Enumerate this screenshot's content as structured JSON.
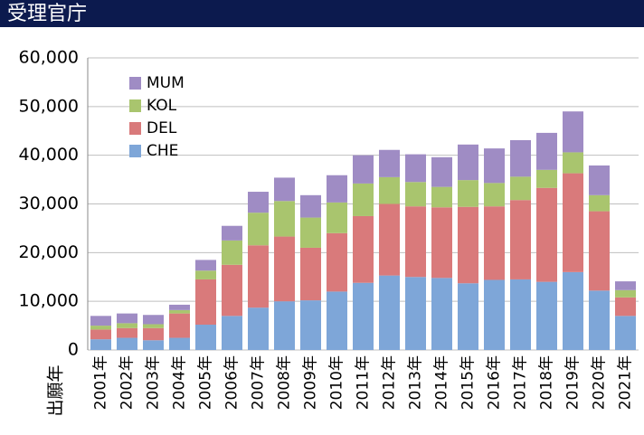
{
  "chart_data": {
    "type": "stacked_bar",
    "title": "受理官庁",
    "x_label": "出願年",
    "categories": [
      "2001年",
      "2002年",
      "2003年",
      "2004年",
      "2005年",
      "2006年",
      "2007年",
      "2008年",
      "2009年",
      "2010年",
      "2011年",
      "2012年",
      "2013年",
      "2014年",
      "2015年",
      "2016年",
      "2017年",
      "2018年",
      "2019年",
      "2020年",
      "2021年"
    ],
    "series": [
      {
        "name": "CHE",
        "color": "#7ea6d8",
        "values": [
          2200,
          2500,
          2000,
          2500,
          5200,
          7000,
          8700,
          10000,
          10200,
          12000,
          13800,
          15300,
          15000,
          14800,
          13700,
          14400,
          14500,
          14000,
          16000,
          12200,
          7000
        ]
      },
      {
        "name": "DEL",
        "color": "#d97a7b",
        "values": [
          2000,
          2000,
          2500,
          5000,
          9300,
          10500,
          12800,
          13300,
          10800,
          12000,
          13700,
          14700,
          14500,
          14500,
          15700,
          15100,
          16300,
          19300,
          20300,
          16300,
          3800
        ]
      },
      {
        "name": "KOL",
        "color": "#a9c56e",
        "values": [
          800,
          1000,
          800,
          700,
          1800,
          5000,
          6700,
          7300,
          6200,
          6300,
          6700,
          5500,
          5000,
          4200,
          5500,
          4800,
          4800,
          3700,
          4300,
          3300,
          1500
        ]
      },
      {
        "name": "MUM",
        "color": "#9f8cc4",
        "values": [
          2000,
          2000,
          1900,
          1100,
          2200,
          3000,
          4300,
          4800,
          4600,
          5600,
          5800,
          5600,
          5700,
          6100,
          7300,
          7100,
          7500,
          7600,
          8400,
          6100,
          1800
        ]
      }
    ],
    "ylim": [
      0,
      60000
    ],
    "yticks": [
      0,
      {
        "value": 10000,
        "label": "10,000"
      },
      {
        "value": 20000,
        "label": "20,000"
      },
      {
        "value": 30000,
        "label": "30,000"
      },
      {
        "value": 40000,
        "label": "40,000"
      },
      {
        "value": 50000,
        "label": "50,000"
      },
      {
        "value": 60000,
        "label": "60,000"
      }
    ],
    "grid": true,
    "legend": "upper-left"
  }
}
